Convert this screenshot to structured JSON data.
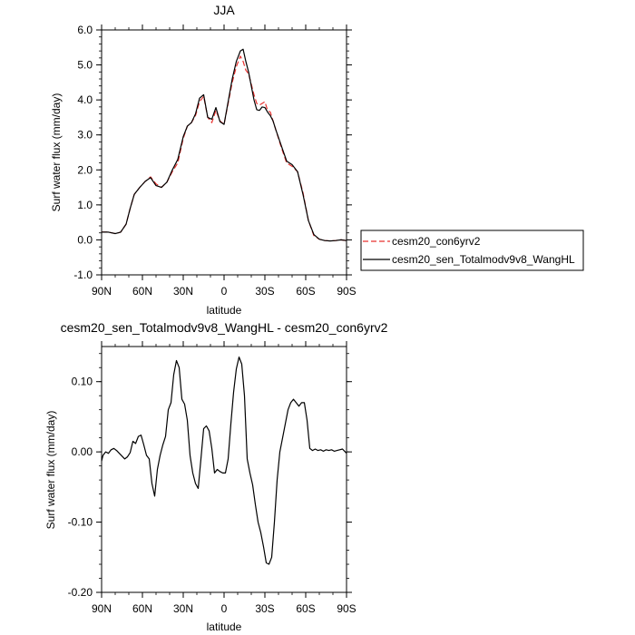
{
  "chart_data": [
    {
      "type": "line",
      "title": "JJA",
      "xlabel": "latitude",
      "ylabel": "Surf water flux (mm/day)",
      "xlim": [
        90,
        -90
      ],
      "ylim": [
        -1.0,
        6.0
      ],
      "xticks": [
        90,
        60,
        30,
        0,
        -30,
        -60,
        -90
      ],
      "xtick_labels": [
        "90N",
        "60N",
        "30N",
        "0",
        "30S",
        "60S",
        "90S"
      ],
      "yticks": [
        -1.0,
        0.0,
        1.0,
        2.0,
        3.0,
        4.0,
        5.0,
        6.0
      ],
      "ytick_labels": [
        "-1.0",
        "0.0",
        "1.0",
        "2.0",
        "3.0",
        "4.0",
        "5.0",
        "6.0"
      ],
      "grid": false,
      "legend_position": "right, outside plot",
      "series": [
        {
          "name": "cesm20_con6yrv2",
          "color": "#e8322f",
          "dash": "dashed",
          "x": [
            90,
            85,
            80,
            76,
            72,
            69,
            66,
            62,
            58,
            54,
            50,
            46,
            42,
            38,
            34,
            30,
            27,
            24,
            21,
            18,
            15,
            12,
            9,
            6,
            3,
            0,
            -3,
            -6,
            -9,
            -12,
            -14,
            -16,
            -18,
            -20,
            -22,
            -24,
            -26,
            -28,
            -30,
            -32,
            -34,
            -36,
            -38,
            -42,
            -46,
            -50,
            -54,
            -58,
            -62,
            -66,
            -70,
            -74,
            -78,
            -82,
            -86,
            -90
          ],
          "y": [
            0.22,
            0.22,
            0.18,
            0.22,
            0.45,
            0.9,
            1.3,
            1.5,
            1.67,
            1.8,
            1.6,
            1.5,
            1.65,
            1.95,
            2.2,
            2.9,
            3.25,
            3.35,
            3.55,
            3.95,
            4.1,
            3.5,
            3.35,
            3.7,
            3.4,
            3.3,
            3.9,
            4.5,
            4.95,
            5.25,
            5.1,
            4.85,
            4.75,
            4.45,
            4.15,
            3.9,
            3.85,
            3.9,
            3.95,
            3.7,
            3.65,
            3.4,
            3.15,
            2.65,
            2.2,
            2.1,
            1.95,
            1.35,
            0.55,
            0.12,
            0.02,
            -0.02,
            -0.03,
            -0.02,
            0.0,
            -0.02
          ]
        },
        {
          "name": "cesm20_sen_Totalmodv9v8_WangHL",
          "color": "#000000",
          "dash": "solid",
          "x": [
            90,
            85,
            80,
            76,
            72,
            69,
            66,
            62,
            58,
            54,
            50,
            46,
            42,
            38,
            34,
            30,
            27,
            24,
            21,
            18,
            15,
            12,
            9,
            6,
            3,
            0,
            -3,
            -6,
            -9,
            -12,
            -14,
            -16,
            -18,
            -20,
            -22,
            -24,
            -26,
            -28,
            -30,
            -32,
            -34,
            -36,
            -38,
            -42,
            -46,
            -50,
            -54,
            -58,
            -62,
            -66,
            -70,
            -74,
            -78,
            -82,
            -86,
            -90
          ],
          "y": [
            0.22,
            0.22,
            0.18,
            0.22,
            0.45,
            0.9,
            1.3,
            1.5,
            1.67,
            1.78,
            1.55,
            1.5,
            1.65,
            2.0,
            2.3,
            2.95,
            3.25,
            3.35,
            3.6,
            4.05,
            4.15,
            3.5,
            3.45,
            3.78,
            3.38,
            3.3,
            3.95,
            4.6,
            5.1,
            5.4,
            5.45,
            5.1,
            4.8,
            4.4,
            4.0,
            3.72,
            3.7,
            3.8,
            3.78,
            3.65,
            3.55,
            3.4,
            3.15,
            2.7,
            2.25,
            2.15,
            1.95,
            1.3,
            0.55,
            0.15,
            0.02,
            -0.02,
            -0.03,
            -0.02,
            0.0,
            -0.02
          ]
        }
      ]
    },
    {
      "type": "line",
      "title": "cesm20_sen_Totalmodv9v8_WangHL - cesm20_con6yrv2",
      "xlabel": "latitude",
      "ylabel": "Surf water flux (mm/day)",
      "xlim": [
        90,
        -90
      ],
      "ylim": [
        -0.2,
        0.15
      ],
      "xticks": [
        90,
        60,
        30,
        0,
        -30,
        -60,
        -90
      ],
      "xtick_labels": [
        "90N",
        "60N",
        "30N",
        "0",
        "30S",
        "60S",
        "90S"
      ],
      "yticks": [
        -0.2,
        -0.1,
        0.0,
        0.1
      ],
      "ytick_labels": [
        "-0.20",
        "-0.10",
        "0.00",
        "0.10"
      ],
      "grid": false,
      "series": [
        {
          "color": "#000000",
          "dash": "solid",
          "x": [
            90,
            89,
            87,
            85,
            83,
            81,
            79,
            77,
            75,
            73,
            71,
            69,
            67,
            65,
            63,
            61,
            59,
            57,
            55,
            53,
            51,
            49,
            47,
            45,
            43,
            41,
            39,
            37,
            35,
            33,
            31,
            29,
            27,
            25,
            23,
            21,
            19,
            17,
            15,
            13,
            11,
            9,
            7,
            5,
            3,
            1,
            -1,
            -3,
            -5,
            -7,
            -9,
            -11,
            -13,
            -15,
            -17,
            -19,
            -21,
            -23,
            -25,
            -27,
            -29,
            -31,
            -33,
            -35,
            -37,
            -39,
            -41,
            -43,
            -45,
            -47,
            -49,
            -51,
            -53,
            -55,
            -57,
            -59,
            -61,
            -63,
            -65,
            -67,
            -69,
            -71,
            -73,
            -75,
            -77,
            -79,
            -81,
            -83,
            -85,
            -87,
            -89,
            -90
          ],
          "y": [
            -0.013,
            -0.005,
            0.0,
            -0.002,
            0.003,
            0.005,
            0.002,
            -0.002,
            -0.006,
            -0.01,
            -0.007,
            -0.001,
            0.015,
            0.012,
            0.022,
            0.024,
            0.01,
            -0.005,
            -0.01,
            -0.045,
            -0.063,
            -0.025,
            -0.005,
            0.01,
            0.022,
            0.06,
            0.07,
            0.11,
            0.13,
            0.12,
            0.075,
            0.068,
            0.045,
            -0.005,
            -0.03,
            -0.045,
            -0.052,
            -0.01,
            0.033,
            0.037,
            0.03,
            0.005,
            -0.03,
            -0.025,
            -0.028,
            -0.03,
            -0.03,
            -0.01,
            0.04,
            0.085,
            0.118,
            0.135,
            0.125,
            0.08,
            -0.01,
            -0.03,
            -0.047,
            -0.075,
            -0.1,
            -0.115,
            -0.135,
            -0.158,
            -0.16,
            -0.15,
            -0.1,
            -0.04,
            0.0,
            0.02,
            0.04,
            0.06,
            0.07,
            0.075,
            0.07,
            0.065,
            0.07,
            0.07,
            0.045,
            0.005,
            0.002,
            0.004,
            0.002,
            0.003,
            0.001,
            0.003,
            0.002,
            0.003,
            0.001,
            0.002,
            0.003,
            0.004,
            0.0,
            -0.002
          ]
        }
      ]
    }
  ],
  "legend": {
    "items": [
      {
        "label": "cesm20_con6yrv2",
        "color": "#e8322f",
        "dash": "dashed"
      },
      {
        "label": "cesm20_sen_Totalmodv9v8_WangHL",
        "color": "#000000",
        "dash": "solid"
      }
    ]
  }
}
